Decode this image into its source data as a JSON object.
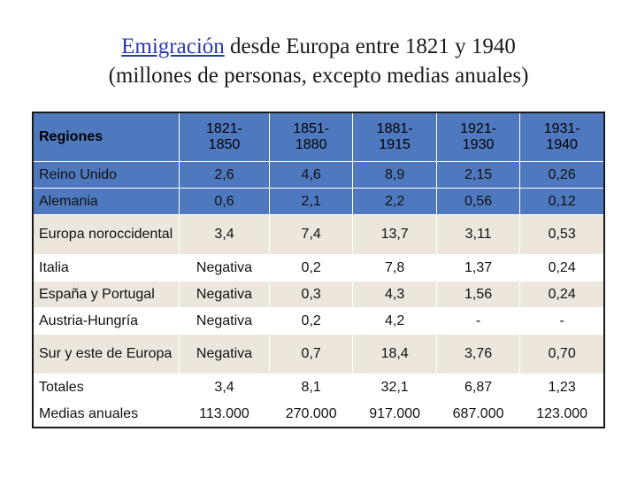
{
  "title": {
    "link_word": "Emigración",
    "line1_rest": " desde Europa entre 1821 y 1940",
    "line2": "(millones de personas, excepto medias anuales)"
  },
  "table": {
    "header": {
      "region_label": "Regiones",
      "periods": [
        [
          "1821-",
          "1850"
        ],
        [
          "1851-",
          "1880"
        ],
        [
          "1881-",
          "1915"
        ],
        [
          "1921-",
          "1930"
        ],
        [
          "1931-",
          "1940"
        ]
      ]
    },
    "rows": [
      {
        "region": "Reino Unido",
        "values": [
          "2,6",
          "4,6",
          "8,9",
          "2,15",
          "0,26"
        ]
      },
      {
        "region": "Alemania",
        "values": [
          "0,6",
          "2,1",
          "2,2",
          "0,56",
          "0,12"
        ]
      },
      {
        "region": "Europa noroccidental",
        "values": [
          "3,4",
          "7,4",
          "13,7",
          "3,11",
          "0,53"
        ]
      },
      {
        "region": "Italia",
        "values": [
          "Negativa",
          "0,2",
          "7,8",
          "1,37",
          "0,24"
        ]
      },
      {
        "region": "España y Portugal",
        "values": [
          "Negativa",
          "0,3",
          "4,3",
          "1,56",
          "0,24"
        ]
      },
      {
        "region": "Austria-Hungría",
        "values": [
          "Negativa",
          "0,2",
          "4,2",
          "-",
          "-"
        ]
      },
      {
        "region": "Sur y este de Europa",
        "values": [
          "Negativa",
          "0,7",
          "18,4",
          "3,76",
          "0,70"
        ]
      },
      {
        "region": "Totales",
        "values": [
          "3,4",
          "8,1",
          "32,1",
          "6,87",
          "1,23"
        ]
      },
      {
        "region": "Medias anuales",
        "values": [
          "113.000",
          "270.000",
          "917.000",
          "687.000",
          "123.000"
        ]
      }
    ]
  },
  "colors": {
    "header_blue": "#4f79be",
    "light_row": "#ede6dd",
    "link": "#2a3aa8"
  }
}
